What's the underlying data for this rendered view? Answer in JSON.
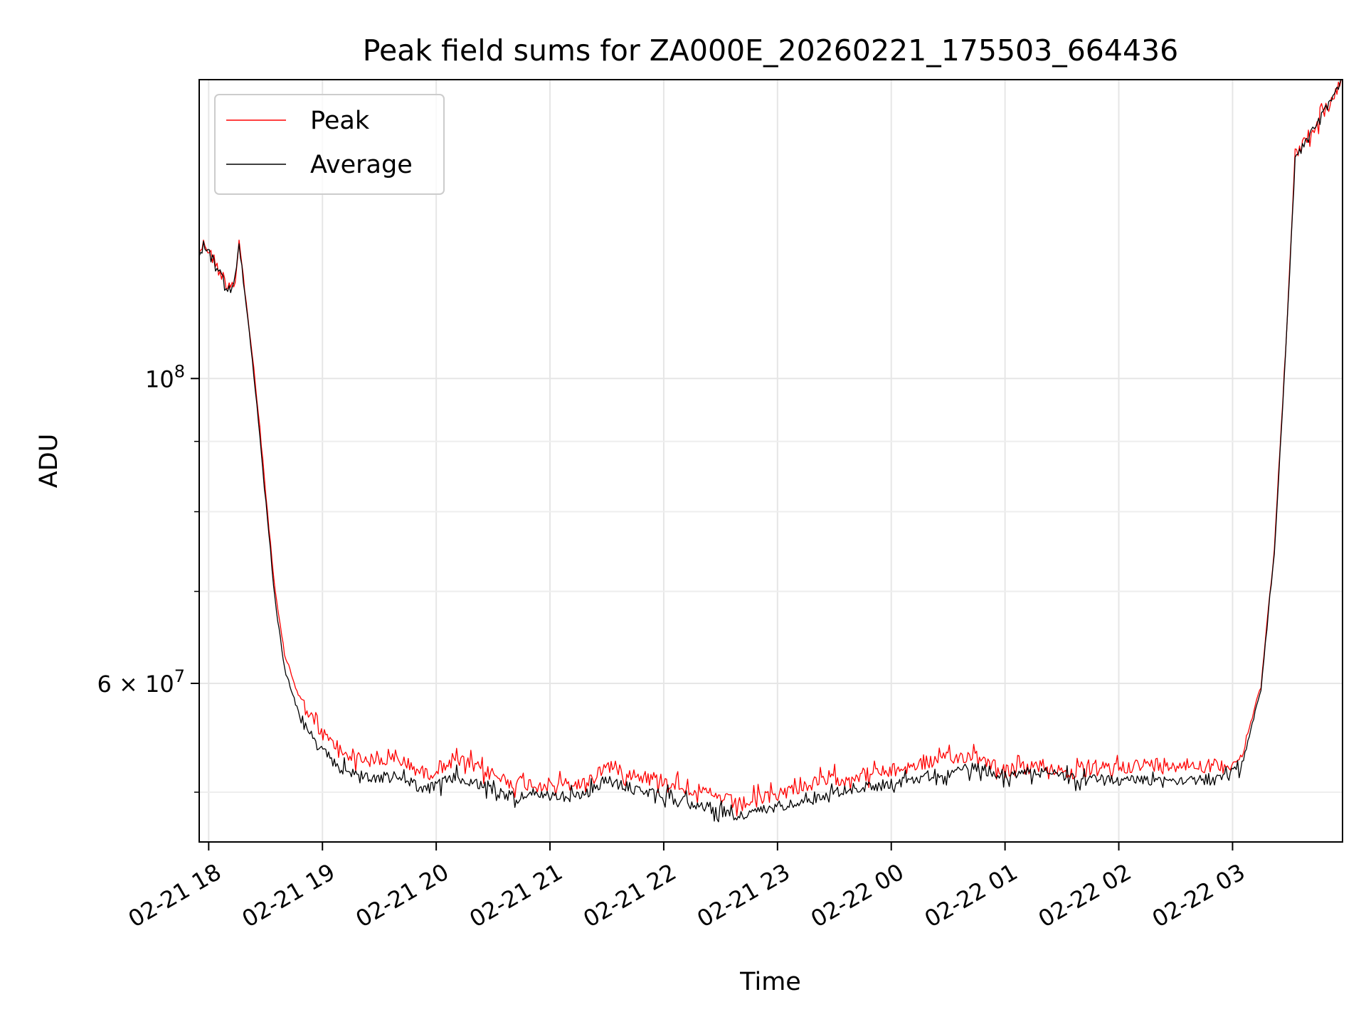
{
  "chart_data": {
    "type": "line",
    "title": "Peak field sums for ZA000E_20260221_175503_664436",
    "xlabel": "Time",
    "ylabel": "ADU",
    "yscale": "log",
    "grid": true,
    "legend_position": "top-left",
    "xlim": [
      "2026-02-21 17:55",
      "2026-02-22 03:58"
    ],
    "ylim": [
      46000000,
      165000000
    ],
    "x_ticks": [
      {
        "value": "2026-02-21 18:00",
        "label": "02-21 18"
      },
      {
        "value": "2026-02-21 19:00",
        "label": "02-21 19"
      },
      {
        "value": "2026-02-21 20:00",
        "label": "02-21 20"
      },
      {
        "value": "2026-02-21 21:00",
        "label": "02-21 21"
      },
      {
        "value": "2026-02-21 22:00",
        "label": "02-21 22"
      },
      {
        "value": "2026-02-21 23:00",
        "label": "02-21 23"
      },
      {
        "value": "2026-02-22 00:00",
        "label": "02-22 00"
      },
      {
        "value": "2026-02-22 01:00",
        "label": "02-22 01"
      },
      {
        "value": "2026-02-22 02:00",
        "label": "02-22 02"
      },
      {
        "value": "2026-02-22 03:00",
        "label": "02-22 03"
      }
    ],
    "y_ticks_major": [
      {
        "value": 60000000,
        "mantissa": "6",
        "exponent": "7"
      },
      {
        "value": 100000000,
        "mantissa": "",
        "exponent": "8"
      }
    ],
    "y_ticks_minor": [
      50000000,
      70000000,
      80000000,
      90000000
    ],
    "series": [
      {
        "name": "Peak",
        "color": "#ff0000",
        "points": [
          [
            "2026-02-21 17:55",
            124000000
          ],
          [
            "2026-02-21 17:58",
            125500000
          ],
          [
            "2026-02-21 18:02",
            122500000
          ],
          [
            "2026-02-21 18:06",
            119500000
          ],
          [
            "2026-02-21 18:10",
            117000000
          ],
          [
            "2026-02-21 18:14",
            118000000
          ],
          [
            "2026-02-21 18:16",
            126000000
          ],
          [
            "2026-02-21 18:19",
            116000000
          ],
          [
            "2026-02-21 18:23",
            104000000
          ],
          [
            "2026-02-21 18:27",
            92000000
          ],
          [
            "2026-02-21 18:31",
            80000000
          ],
          [
            "2026-02-21 18:35",
            70000000
          ],
          [
            "2026-02-21 18:40",
            63000000
          ],
          [
            "2026-02-21 18:48",
            58500000
          ],
          [
            "2026-02-21 18:58",
            55500000
          ],
          [
            "2026-02-21 19:10",
            53500000
          ],
          [
            "2026-02-21 19:25",
            52700000
          ],
          [
            "2026-02-21 19:40",
            52800000
          ],
          [
            "2026-02-21 19:55",
            51500000
          ],
          [
            "2026-02-21 20:10",
            52900000
          ],
          [
            "2026-02-21 20:25",
            51800000
          ],
          [
            "2026-02-21 20:40",
            50800000
          ],
          [
            "2026-02-21 21:00",
            50600000
          ],
          [
            "2026-02-21 21:18",
            50700000
          ],
          [
            "2026-02-21 21:30",
            52300000
          ],
          [
            "2026-02-21 21:45",
            51500000
          ],
          [
            "2026-02-21 22:00",
            51000000
          ],
          [
            "2026-02-21 22:20",
            50000000
          ],
          [
            "2026-02-21 22:40",
            49000000
          ],
          [
            "2026-02-21 22:55",
            49600000
          ],
          [
            "2026-02-21 23:15",
            50600000
          ],
          [
            "2026-02-21 23:40",
            51400000
          ],
          [
            "2026-02-22 00:00",
            51800000
          ],
          [
            "2026-02-22 00:20",
            52600000
          ],
          [
            "2026-02-22 00:45",
            53300000
          ],
          [
            "2026-02-22 01:00",
            51800000
          ],
          [
            "2026-02-22 01:20",
            52300000
          ],
          [
            "2026-02-22 01:35",
            51600000
          ],
          [
            "2026-02-22 02:00",
            52200000
          ],
          [
            "2026-02-22 02:30",
            52500000
          ],
          [
            "2026-02-22 02:55",
            52200000
          ],
          [
            "2026-02-22 03:05",
            53000000
          ],
          [
            "2026-02-22 03:15",
            60000000
          ],
          [
            "2026-02-22 03:22",
            75000000
          ],
          [
            "2026-02-22 03:28",
            105000000
          ],
          [
            "2026-02-22 03:33",
            145000000
          ],
          [
            "2026-02-22 03:40",
            150000000
          ],
          [
            "2026-02-22 03:50",
            158000000
          ],
          [
            "2026-02-22 03:58",
            165000000
          ]
        ]
      },
      {
        "name": "Average",
        "color": "#000000",
        "points": [
          [
            "2026-02-21 17:55",
            123500000
          ],
          [
            "2026-02-21 17:58",
            125000000
          ],
          [
            "2026-02-21 18:02",
            122000000
          ],
          [
            "2026-02-21 18:06",
            119000000
          ],
          [
            "2026-02-21 18:10",
            116500000
          ],
          [
            "2026-02-21 18:14",
            117500000
          ],
          [
            "2026-02-21 18:16",
            125000000
          ],
          [
            "2026-02-21 18:19",
            115500000
          ],
          [
            "2026-02-21 18:23",
            103000000
          ],
          [
            "2026-02-21 18:27",
            91000000
          ],
          [
            "2026-02-21 18:31",
            79000000
          ],
          [
            "2026-02-21 18:35",
            69000000
          ],
          [
            "2026-02-21 18:40",
            61500000
          ],
          [
            "2026-02-21 18:48",
            56800000
          ],
          [
            "2026-02-21 18:58",
            53800000
          ],
          [
            "2026-02-21 19:10",
            52000000
          ],
          [
            "2026-02-21 19:25",
            51200000
          ],
          [
            "2026-02-21 19:40",
            51300000
          ],
          [
            "2026-02-21 19:55",
            50200000
          ],
          [
            "2026-02-21 20:10",
            51300000
          ],
          [
            "2026-02-21 20:25",
            50400000
          ],
          [
            "2026-02-21 20:40",
            49700000
          ],
          [
            "2026-02-21 21:00",
            49600000
          ],
          [
            "2026-02-21 21:18",
            49700000
          ],
          [
            "2026-02-21 21:30",
            51000000
          ],
          [
            "2026-02-21 21:45",
            50200000
          ],
          [
            "2026-02-21 22:00",
            49800000
          ],
          [
            "2026-02-21 22:20",
            48900000
          ],
          [
            "2026-02-21 22:40",
            48000000
          ],
          [
            "2026-02-21 22:55",
            48600000
          ],
          [
            "2026-02-21 23:15",
            49500000
          ],
          [
            "2026-02-21 23:40",
            50300000
          ],
          [
            "2026-02-22 00:00",
            50700000
          ],
          [
            "2026-02-22 00:20",
            51400000
          ],
          [
            "2026-02-22 00:45",
            52100000
          ],
          [
            "2026-02-22 01:00",
            51400000
          ],
          [
            "2026-02-22 01:20",
            51900000
          ],
          [
            "2026-02-22 01:35",
            51100000
          ],
          [
            "2026-02-22 02:00",
            51000000
          ],
          [
            "2026-02-22 02:30",
            51100000
          ],
          [
            "2026-02-22 02:55",
            51000000
          ],
          [
            "2026-02-22 03:05",
            52300000
          ],
          [
            "2026-02-22 03:15",
            59500000
          ],
          [
            "2026-02-22 03:22",
            74500000
          ],
          [
            "2026-02-22 03:28",
            104500000
          ],
          [
            "2026-02-22 03:33",
            144000000
          ],
          [
            "2026-02-22 03:40",
            149500000
          ],
          [
            "2026-02-22 03:50",
            157500000
          ],
          [
            "2026-02-22 03:58",
            165000000
          ]
        ]
      }
    ]
  }
}
